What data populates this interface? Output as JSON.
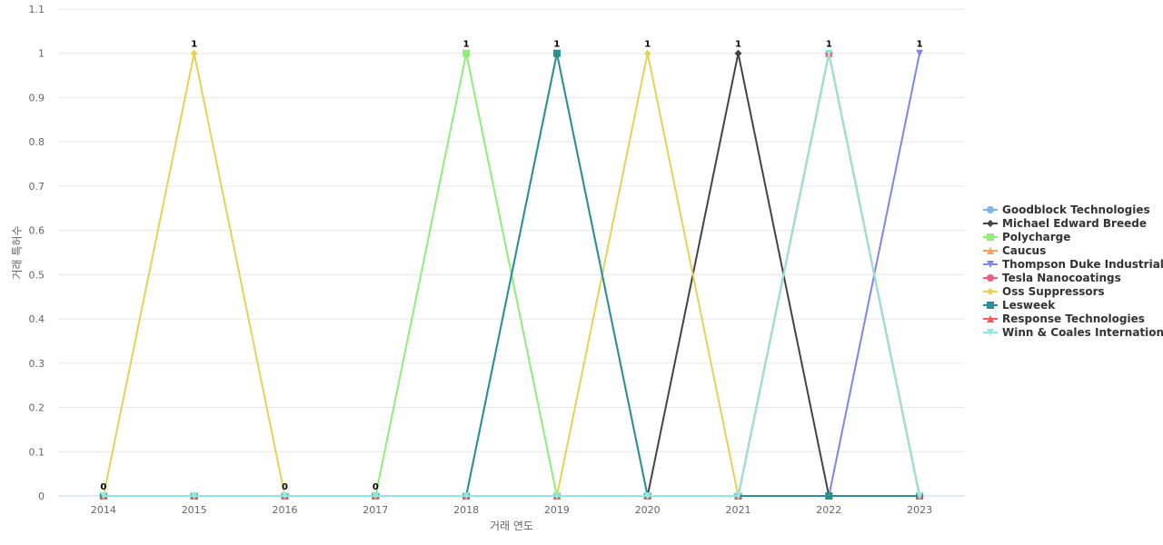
{
  "chart_data": {
    "type": "line",
    "xlabel": "거래 연도",
    "ylabel": "거래 특허수",
    "ylim": [
      0,
      1.1
    ],
    "yticks": [
      0,
      0.1,
      0.2,
      0.3,
      0.4,
      0.5,
      0.6,
      0.7,
      0.8,
      0.9,
      1,
      1.1
    ],
    "grid": true,
    "legend_position": "right",
    "categories": [
      "2014",
      "2015",
      "2016",
      "2017",
      "2018",
      "2019",
      "2020",
      "2021",
      "2022",
      "2023"
    ],
    "series": [
      {
        "name": "Goodblock Technologies",
        "color": "#7cb5ec",
        "marker": "circle",
        "values": [
          0,
          0,
          0,
          0,
          0,
          1,
          0,
          0,
          0,
          0
        ]
      },
      {
        "name": "Michael Edward Breede",
        "color": "#434348",
        "marker": "diamond",
        "values": [
          0,
          0,
          0,
          0,
          0,
          0,
          0,
          1,
          0,
          0
        ]
      },
      {
        "name": "Polycharge",
        "color": "#90ed7d",
        "marker": "square",
        "values": [
          0,
          0,
          0,
          0,
          1,
          0,
          0,
          0,
          0,
          0
        ]
      },
      {
        "name": "Caucus",
        "color": "#f7a35c",
        "marker": "triangle",
        "values": [
          0,
          0,
          0,
          0,
          0,
          0,
          0,
          0,
          1,
          0
        ]
      },
      {
        "name": "Thompson Duke Industrial",
        "color": "#8085e9",
        "marker": "triangle-down",
        "values": [
          0,
          0,
          0,
          0,
          0,
          0,
          0,
          0,
          0,
          1
        ]
      },
      {
        "name": "Tesla Nanocoatings",
        "color": "#f15c80",
        "marker": "circle",
        "values": [
          0,
          0,
          0,
          0,
          0,
          0,
          0,
          0,
          1,
          0
        ]
      },
      {
        "name": "Oss Suppressors",
        "color": "#e4d354",
        "marker": "diamond",
        "values": [
          0,
          1,
          0,
          0,
          0,
          0,
          1,
          0,
          0,
          0
        ]
      },
      {
        "name": "Lesweek",
        "color": "#2b908f",
        "marker": "square",
        "values": [
          0,
          0,
          0,
          0,
          0,
          1,
          0,
          0,
          0,
          0
        ]
      },
      {
        "name": "Response Technologies",
        "color": "#f45b5b",
        "marker": "triangle",
        "values": [
          0,
          0,
          0,
          0,
          0,
          0,
          0,
          0,
          1,
          0
        ]
      },
      {
        "name": "Winn & Coales International",
        "color": "#91e8e1",
        "marker": "triangle-down",
        "values": [
          0,
          0,
          0,
          0,
          0,
          0,
          0,
          0,
          1,
          0
        ]
      }
    ],
    "data_labels": [
      "0",
      "1",
      "0",
      "0",
      "1",
      "1",
      "1",
      "1",
      "1",
      "1"
    ]
  }
}
